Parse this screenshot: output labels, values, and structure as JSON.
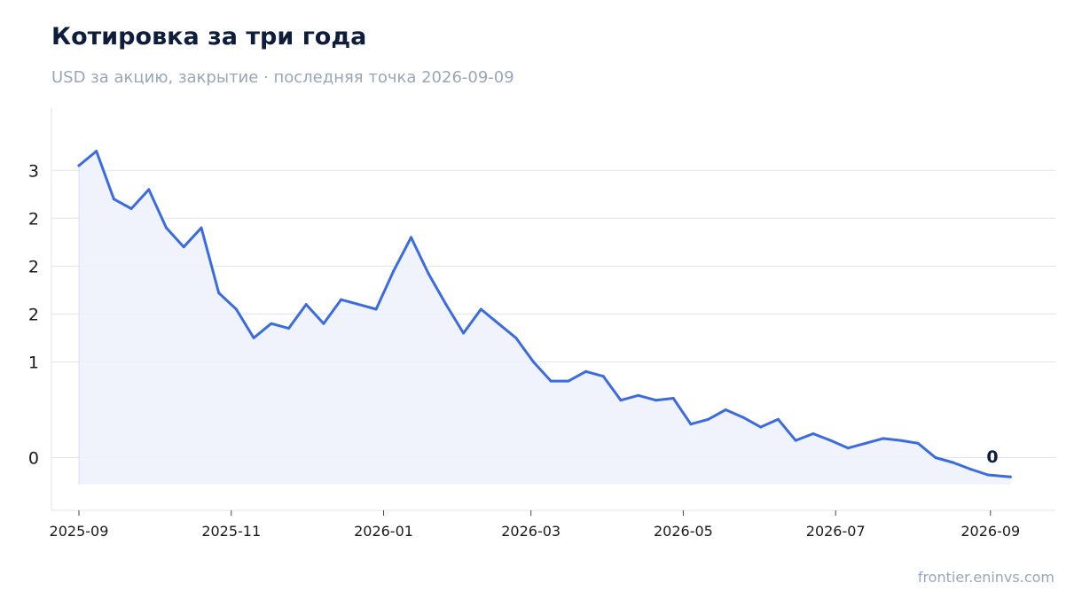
{
  "title": "Котировка за три года",
  "subtitle": "USD за акцию, закрытие · последняя точка 2026-09-09",
  "source": "frontier.eninvs.com",
  "colors": {
    "line": "#3a6be0",
    "fill": "#eef2fc",
    "grid": "#dfe3ec",
    "axis": "#dfe3ec",
    "title": "#0f1d3d"
  },
  "chart_data": {
    "type": "area",
    "ylim": [
      -0.55,
      3.65
    ],
    "xlim": [
      "2025-08-21",
      "2026-09-27"
    ],
    "yticks": [
      {
        "value": 3,
        "label": "3"
      },
      {
        "value": 2.5,
        "label": "2"
      },
      {
        "value": 2,
        "label": "2"
      },
      {
        "value": 1.5,
        "label": "2"
      },
      {
        "value": 1,
        "label": "1"
      },
      {
        "value": 0,
        "label": "0"
      }
    ],
    "xticks": [
      "2025-09",
      "2025-11",
      "2026-01",
      "2026-03",
      "2026-05",
      "2026-07",
      "2026-09"
    ],
    "fill_baseline": -0.28,
    "end_label": "0",
    "series": [
      {
        "x": [
          "2025-09-01",
          "2025-09-08",
          "2025-09-15",
          "2025-09-22",
          "2025-09-29",
          "2025-10-06",
          "2025-10-13",
          "2025-10-20",
          "2025-10-27",
          "2025-11-03",
          "2025-11-10",
          "2025-11-17",
          "2025-11-24",
          "2025-12-01",
          "2025-12-08",
          "2025-12-15",
          "2025-12-22",
          "2025-12-29",
          "2026-01-05",
          "2026-01-12",
          "2026-01-19",
          "2026-01-26",
          "2026-02-02",
          "2026-02-09",
          "2026-02-16",
          "2026-02-23",
          "2026-03-02",
          "2026-03-09",
          "2026-03-16",
          "2026-03-23",
          "2026-03-30",
          "2026-04-06",
          "2026-04-13",
          "2026-04-20",
          "2026-04-27",
          "2026-05-04",
          "2026-05-11",
          "2026-05-18",
          "2026-05-25",
          "2026-06-01",
          "2026-06-08",
          "2026-06-15",
          "2026-06-22",
          "2026-06-29",
          "2026-07-06",
          "2026-07-13",
          "2026-07-20",
          "2026-07-27",
          "2026-08-03",
          "2026-08-10",
          "2026-08-17",
          "2026-08-24",
          "2026-08-31",
          "2026-09-09"
        ],
        "y": [
          3.05,
          3.2,
          2.7,
          2.6,
          2.8,
          2.4,
          2.2,
          2.4,
          1.72,
          1.55,
          1.25,
          1.4,
          1.35,
          1.6,
          1.4,
          1.65,
          1.6,
          1.55,
          1.95,
          2.3,
          1.92,
          1.6,
          1.3,
          1.55,
          1.4,
          1.25,
          1.0,
          0.8,
          0.8,
          0.9,
          0.85,
          0.6,
          0.65,
          0.6,
          0.62,
          0.35,
          0.4,
          0.5,
          0.42,
          0.32,
          0.4,
          0.18,
          0.25,
          0.18,
          0.1,
          0.15,
          0.2,
          0.18,
          0.15,
          0.0,
          -0.05,
          -0.12,
          -0.18,
          -0.2
        ]
      }
    ]
  }
}
